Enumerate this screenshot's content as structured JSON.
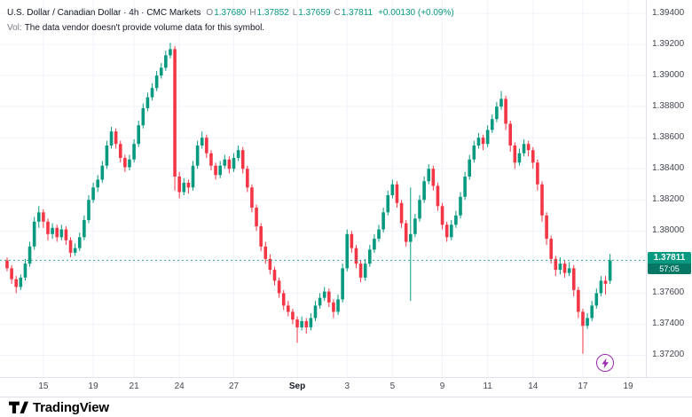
{
  "header": {
    "symbol_title": "U.S. Dollar / Canadian Dollar · 4h · CMC Markets",
    "ohlc": [
      {
        "label": "O",
        "value": "1.37680"
      },
      {
        "label": "H",
        "value": "1.37852"
      },
      {
        "label": "L",
        "value": "1.37659"
      },
      {
        "label": "C",
        "value": "1.37811"
      }
    ],
    "change": "+0.00130 (+0.09%)",
    "vol_label": "Vol:",
    "vol_note": "The data vendor doesn't provide volume data for this symbol."
  },
  "price_scale": {
    "labels": [
      "1.39400",
      "1.39200",
      "1.39000",
      "1.38800",
      "1.38600",
      "1.38400",
      "1.38200",
      "1.38000",
      "1.37800",
      "1.37600",
      "1.37400",
      "1.37200"
    ],
    "current_price": "1.37811",
    "countdown": "57:05"
  },
  "time_scale": {
    "labels": [
      {
        "text": "15",
        "i": 8
      },
      {
        "text": "19",
        "i": 19
      },
      {
        "text": "21",
        "i": 28
      },
      {
        "text": "24",
        "i": 38
      },
      {
        "text": "27",
        "i": 50
      },
      {
        "text": "Sep",
        "i": 64,
        "bold": true
      },
      {
        "text": "3",
        "i": 75
      },
      {
        "text": "5",
        "i": 85
      },
      {
        "text": "9",
        "i": 96
      },
      {
        "text": "11",
        "i": 106
      },
      {
        "text": "14",
        "i": 116
      },
      {
        "text": "17",
        "i": 127
      },
      {
        "text": "19",
        "i": 137
      }
    ]
  },
  "footer": {
    "brand": "TradingView"
  },
  "colors": {
    "up": "#089981",
    "down": "#F23645",
    "grid": "#F0F3FA",
    "text": "#131722",
    "axis_text": "#434651",
    "muted": "#787B86",
    "purple": "#9C27B0",
    "border": "#E0E3EB"
  },
  "chart_data": {
    "type": "candlestick",
    "title": "U.S. Dollar / Canadian Dollar, 4h, CMC Markets",
    "interval": "4h",
    "ylim": [
      1.3706,
      1.39486
    ],
    "x_layout": {
      "x0": 8,
      "dx": 5.11,
      "body_w": 3.6
    },
    "current_price": 1.37811,
    "last_ohlc": {
      "o": 1.3768,
      "h": 1.37852,
      "l": 1.37659,
      "c": 1.37811
    },
    "candles": [
      [
        1.3781,
        1.3783,
        1.3774,
        1.3776
      ],
      [
        1.3776,
        1.3778,
        1.3766,
        1.3769
      ],
      [
        1.3769,
        1.3771,
        1.376,
        1.3764
      ],
      [
        1.3764,
        1.3772,
        1.3762,
        1.377
      ],
      [
        1.377,
        1.3782,
        1.3768,
        1.3779
      ],
      [
        1.3779,
        1.3793,
        1.3777,
        1.379
      ],
      [
        1.379,
        1.3809,
        1.3788,
        1.3806
      ],
      [
        1.3806,
        1.3816,
        1.3802,
        1.3812
      ],
      [
        1.3812,
        1.3814,
        1.3802,
        1.3806
      ],
      [
        1.3806,
        1.3808,
        1.3794,
        1.3798
      ],
      [
        1.3798,
        1.3805,
        1.3795,
        1.3802
      ],
      [
        1.3802,
        1.3804,
        1.3793,
        1.3796
      ],
      [
        1.3796,
        1.3804,
        1.3794,
        1.3801
      ],
      [
        1.3801,
        1.3803,
        1.3791,
        1.3794
      ],
      [
        1.3794,
        1.3796,
        1.3783,
        1.3786
      ],
      [
        1.3786,
        1.3792,
        1.3784,
        1.3789
      ],
      [
        1.3789,
        1.3799,
        1.3787,
        1.3796
      ],
      [
        1.3796,
        1.381,
        1.3794,
        1.3807
      ],
      [
        1.3807,
        1.3823,
        1.3805,
        1.382
      ],
      [
        1.382,
        1.3831,
        1.3818,
        1.3828
      ],
      [
        1.3828,
        1.3836,
        1.3825,
        1.3833
      ],
      [
        1.3833,
        1.3845,
        1.3831,
        1.3842
      ],
      [
        1.3842,
        1.3858,
        1.384,
        1.3855
      ],
      [
        1.3855,
        1.3867,
        1.3853,
        1.3864
      ],
      [
        1.3864,
        1.3866,
        1.3853,
        1.3856
      ],
      [
        1.3856,
        1.3858,
        1.3844,
        1.3847
      ],
      [
        1.3847,
        1.3849,
        1.3838,
        1.3841
      ],
      [
        1.3841,
        1.3849,
        1.3839,
        1.3846
      ],
      [
        1.3846,
        1.3859,
        1.3844,
        1.3856
      ],
      [
        1.3856,
        1.3871,
        1.3854,
        1.3868
      ],
      [
        1.3868,
        1.3882,
        1.3866,
        1.3879
      ],
      [
        1.3879,
        1.3889,
        1.3877,
        1.3886
      ],
      [
        1.3886,
        1.3895,
        1.3884,
        1.3892
      ],
      [
        1.3892,
        1.3903,
        1.389,
        1.39
      ],
      [
        1.39,
        1.3908,
        1.3898,
        1.3905
      ],
      [
        1.3905,
        1.3916,
        1.3903,
        1.3913
      ],
      [
        1.3913,
        1.3921,
        1.3911,
        1.3917
      ],
      [
        1.3917,
        1.3919,
        1.3826,
        1.3835
      ],
      [
        1.3835,
        1.3838,
        1.3821,
        1.3825
      ],
      [
        1.3825,
        1.3834,
        1.3823,
        1.3831
      ],
      [
        1.3831,
        1.3833,
        1.3824,
        1.3828
      ],
      [
        1.3828,
        1.3845,
        1.3826,
        1.3842
      ],
      [
        1.3842,
        1.3858,
        1.384,
        1.3855
      ],
      [
        1.3855,
        1.3864,
        1.3853,
        1.386
      ],
      [
        1.386,
        1.3862,
        1.3847,
        1.385
      ],
      [
        1.385,
        1.3852,
        1.3839,
        1.3842
      ],
      [
        1.3842,
        1.3844,
        1.3833,
        1.3836
      ],
      [
        1.3836,
        1.3845,
        1.3834,
        1.3842
      ],
      [
        1.3842,
        1.3849,
        1.384,
        1.3846
      ],
      [
        1.3846,
        1.3848,
        1.3837,
        1.384
      ],
      [
        1.384,
        1.385,
        1.3838,
        1.3847
      ],
      [
        1.3847,
        1.3855,
        1.3845,
        1.3852
      ],
      [
        1.3852,
        1.3854,
        1.3837,
        1.384
      ],
      [
        1.384,
        1.3842,
        1.3825,
        1.3828
      ],
      [
        1.3828,
        1.383,
        1.3812,
        1.3815
      ],
      [
        1.3815,
        1.3817,
        1.38,
        1.3803
      ],
      [
        1.3803,
        1.3805,
        1.3787,
        1.379
      ],
      [
        1.379,
        1.3793,
        1.3779,
        1.3782
      ],
      [
        1.3782,
        1.3785,
        1.3772,
        1.3775
      ],
      [
        1.3775,
        1.3777,
        1.3765,
        1.3768
      ],
      [
        1.3768,
        1.377,
        1.3757,
        1.376
      ],
      [
        1.376,
        1.3762,
        1.3749,
        1.3752
      ],
      [
        1.3752,
        1.3755,
        1.3745,
        1.3748
      ],
      [
        1.3748,
        1.375,
        1.374,
        1.3743
      ],
      [
        1.3743,
        1.3745,
        1.3728,
        1.3738
      ],
      [
        1.3738,
        1.3745,
        1.3736,
        1.3742
      ],
      [
        1.3742,
        1.3744,
        1.3734,
        1.3738
      ],
      [
        1.3738,
        1.3747,
        1.3736,
        1.3744
      ],
      [
        1.3744,
        1.3755,
        1.3742,
        1.3752
      ],
      [
        1.3752,
        1.376,
        1.375,
        1.3757
      ],
      [
        1.3757,
        1.3764,
        1.3755,
        1.3761
      ],
      [
        1.3761,
        1.3763,
        1.3751,
        1.3754
      ],
      [
        1.3754,
        1.3756,
        1.3744,
        1.3748
      ],
      [
        1.3748,
        1.3759,
        1.3746,
        1.3756
      ],
      [
        1.3756,
        1.3779,
        1.3754,
        1.3776
      ],
      [
        1.3776,
        1.3801,
        1.3774,
        1.3798
      ],
      [
        1.3798,
        1.38,
        1.3786,
        1.3789
      ],
      [
        1.3789,
        1.3791,
        1.3776,
        1.3779
      ],
      [
        1.3779,
        1.3781,
        1.3767,
        1.377
      ],
      [
        1.377,
        1.3782,
        1.3768,
        1.3779
      ],
      [
        1.3779,
        1.3791,
        1.3777,
        1.3788
      ],
      [
        1.3788,
        1.3798,
        1.3786,
        1.3795
      ],
      [
        1.3795,
        1.3804,
        1.3793,
        1.3801
      ],
      [
        1.3801,
        1.3815,
        1.3799,
        1.3812
      ],
      [
        1.3812,
        1.3826,
        1.381,
        1.3823
      ],
      [
        1.3823,
        1.3833,
        1.3821,
        1.383
      ],
      [
        1.383,
        1.3832,
        1.3815,
        1.3818
      ],
      [
        1.3818,
        1.382,
        1.3802,
        1.3805
      ],
      [
        1.3805,
        1.3807,
        1.379,
        1.3793
      ],
      [
        1.3793,
        1.3828,
        1.3755,
        1.3798
      ],
      [
        1.3798,
        1.3811,
        1.3796,
        1.3808
      ],
      [
        1.3808,
        1.3823,
        1.3806,
        1.382
      ],
      [
        1.382,
        1.3835,
        1.3818,
        1.3832
      ],
      [
        1.3832,
        1.3843,
        1.383,
        1.384
      ],
      [
        1.384,
        1.3842,
        1.3826,
        1.3829
      ],
      [
        1.3829,
        1.3831,
        1.3813,
        1.3816
      ],
      [
        1.3816,
        1.3818,
        1.3801,
        1.3804
      ],
      [
        1.3804,
        1.3806,
        1.3793,
        1.3796
      ],
      [
        1.3796,
        1.3807,
        1.3794,
        1.3804
      ],
      [
        1.3804,
        1.3813,
        1.3802,
        1.381
      ],
      [
        1.381,
        1.3825,
        1.3808,
        1.3822
      ],
      [
        1.3822,
        1.3838,
        1.382,
        1.3835
      ],
      [
        1.3835,
        1.3849,
        1.3833,
        1.3846
      ],
      [
        1.3846,
        1.3858,
        1.3844,
        1.3855
      ],
      [
        1.3855,
        1.3863,
        1.3853,
        1.386
      ],
      [
        1.386,
        1.3862,
        1.3852,
        1.3856
      ],
      [
        1.3856,
        1.3868,
        1.3854,
        1.3865
      ],
      [
        1.3865,
        1.3875,
        1.3863,
        1.3872
      ],
      [
        1.3872,
        1.3883,
        1.387,
        1.388
      ],
      [
        1.388,
        1.389,
        1.3878,
        1.3885
      ],
      [
        1.3885,
        1.3887,
        1.3865,
        1.3869
      ],
      [
        1.3869,
        1.3871,
        1.3851,
        1.3855
      ],
      [
        1.3855,
        1.3857,
        1.384,
        1.3844
      ],
      [
        1.3844,
        1.3853,
        1.3842,
        1.385
      ],
      [
        1.385,
        1.3859,
        1.3848,
        1.3856
      ],
      [
        1.3856,
        1.3858,
        1.3848,
        1.3852
      ],
      [
        1.3852,
        1.3854,
        1.384,
        1.3844
      ],
      [
        1.3844,
        1.3846,
        1.3826,
        1.383
      ],
      [
        1.383,
        1.3832,
        1.3806,
        1.381
      ],
      [
        1.381,
        1.3812,
        1.3791,
        1.3795
      ],
      [
        1.3795,
        1.3797,
        1.3779,
        1.3782
      ],
      [
        1.3782,
        1.3784,
        1.3771,
        1.3775
      ],
      [
        1.3775,
        1.3783,
        1.3772,
        1.3779
      ],
      [
        1.3779,
        1.3781,
        1.377,
        1.3773
      ],
      [
        1.3773,
        1.378,
        1.3771,
        1.3776
      ],
      [
        1.3776,
        1.3778,
        1.3758,
        1.3762
      ],
      [
        1.3762,
        1.3764,
        1.3744,
        1.3748
      ],
      [
        1.3748,
        1.375,
        1.3721,
        1.3739
      ],
      [
        1.3739,
        1.3747,
        1.3737,
        1.3744
      ],
      [
        1.3744,
        1.3755,
        1.3742,
        1.3752
      ],
      [
        1.3752,
        1.3763,
        1.375,
        1.376
      ],
      [
        1.376,
        1.3771,
        1.3758,
        1.3768
      ],
      [
        1.3768,
        1.3771,
        1.3759,
        1.3766
      ],
      [
        1.3768,
        1.37852,
        1.37659,
        1.37811
      ]
    ]
  }
}
